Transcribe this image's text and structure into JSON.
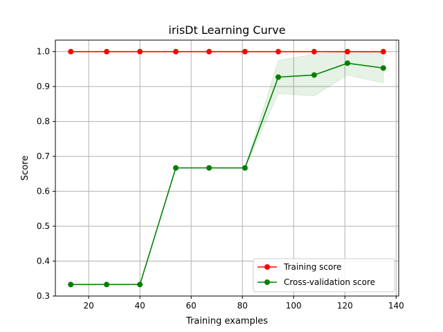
{
  "chart_data": {
    "type": "line",
    "title": "irisDt Learning Curve",
    "xlabel": "Training examples",
    "ylabel": "Score",
    "xlim": [
      7,
      141
    ],
    "ylim": [
      0.3,
      1.033
    ],
    "x_ticks": [
      20,
      40,
      60,
      80,
      100,
      120,
      140
    ],
    "y_ticks": [
      0.3,
      0.4,
      0.5,
      0.6,
      0.7,
      0.8,
      0.9,
      1.0
    ],
    "grid": true,
    "legend_position": "lower right",
    "x": [
      13,
      27,
      40,
      54,
      67,
      81,
      94,
      108,
      121,
      135
    ],
    "series": [
      {
        "name": "Training score",
        "color": "#ff0000",
        "marker": "circle",
        "values": [
          1.0,
          1.0,
          1.0,
          1.0,
          1.0,
          1.0,
          1.0,
          1.0,
          1.0,
          1.0
        ]
      },
      {
        "name": "Cross-validation score",
        "color": "#008000",
        "marker": "circle",
        "values": [
          0.333,
          0.333,
          0.333,
          0.667,
          0.667,
          0.667,
          0.927,
          0.933,
          0.967,
          0.953
        ],
        "band_color": "#008000",
        "band_lower": [
          0.333,
          0.333,
          0.333,
          0.667,
          0.667,
          0.667,
          0.88,
          0.873,
          0.933,
          0.91
        ],
        "band_upper": [
          0.333,
          0.333,
          0.333,
          0.667,
          0.667,
          0.667,
          0.975,
          0.993,
          1.0,
          0.997
        ]
      }
    ]
  }
}
